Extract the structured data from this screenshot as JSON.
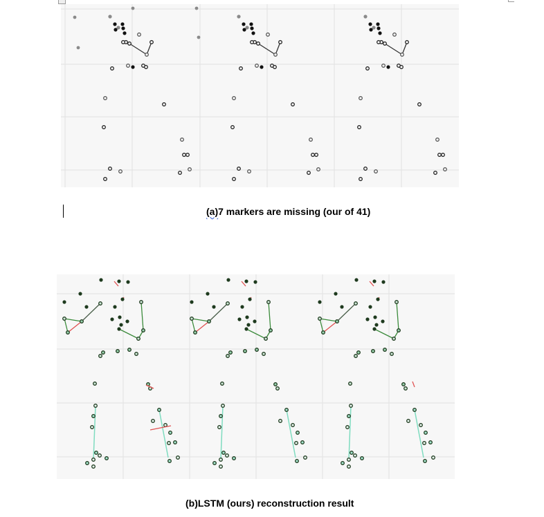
{
  "document": {
    "figure_a": {
      "caption_prefix": "(a)",
      "caption_rest": "7 markers are missing (our of 41)"
    },
    "figure_b": {
      "caption": "(b)LSTM (ours) reconstruction result"
    }
  },
  "colors": {
    "panel_bg": "#f7f7f7",
    "grid": "#e2e2e2",
    "marker_dark": "#111111",
    "marker_gray": "#8a8a8a",
    "bone_green": "#3a8a3a",
    "bone_red": "#e05050",
    "bone_cyan": "#7fdcc0",
    "spelling_underline": "#2b5bd7"
  },
  "icons": {
    "top_left_handle": "resize-handle-icon",
    "top_right_handle": "corner-handle-icon"
  }
}
